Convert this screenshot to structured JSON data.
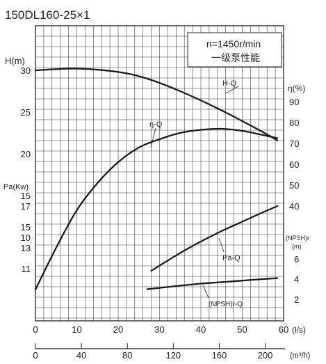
{
  "chart_data": {
    "type": "line",
    "title": "150DL160-25×1",
    "info_box": [
      "n=1450r/min",
      "一级泵性能"
    ],
    "x": {
      "label": "(l/s)",
      "ticks": [
        0,
        10,
        20,
        30,
        40,
        50,
        60
      ],
      "range": [
        0,
        60
      ]
    },
    "x2": {
      "label": "(m³/h)",
      "ticks": [
        0,
        40,
        80,
        120,
        160,
        200
      ]
    },
    "y_axes": {
      "H": {
        "label": "H(m)",
        "ticks": [
          30,
          25,
          20,
          15,
          10
        ]
      },
      "Pa": {
        "label": "Pa(Kw)",
        "ticks": [
          17,
          15,
          13,
          11
        ]
      },
      "eta": {
        "label": "η(%)",
        "ticks": [
          90,
          80,
          70,
          60,
          50,
          40
        ]
      },
      "npsh": {
        "label": "(NPSH)r",
        "unit": "(m)",
        "ticks": [
          6,
          4,
          2
        ]
      }
    },
    "series": [
      {
        "name": "H-Q",
        "axis": "H",
        "x": [
          0,
          10,
          20,
          27,
          35,
          45,
          55,
          58.5
        ],
        "y": [
          30.0,
          30.2,
          29.8,
          29.0,
          27.5,
          25.2,
          22.6,
          21.6
        ]
      },
      {
        "name": "η-Q",
        "axis": "eta",
        "x": [
          0,
          5,
          10,
          15,
          20,
          25,
          30,
          35,
          40,
          45,
          50,
          55,
          58.5
        ],
        "y": [
          0,
          20,
          38,
          51,
          61,
          68,
          72,
          75,
          76.5,
          77,
          76,
          74,
          72.5
        ]
      },
      {
        "name": "Pa-Q",
        "axis": "Pa",
        "x": [
          28,
          35,
          40,
          45,
          50,
          55,
          58.5
        ],
        "y": [
          10.8,
          12.5,
          13.6,
          14.6,
          15.5,
          16.4,
          17.0
        ]
      },
      {
        "name": "(NPSH)r-Q",
        "axis": "npsh",
        "x": [
          27,
          35,
          40,
          45,
          50,
          55,
          58.5
        ],
        "y": [
          3.0,
          3.35,
          3.55,
          3.7,
          3.85,
          4.0,
          4.1
        ]
      }
    ],
    "series_labels": [
      "H-Q",
      "η-Q",
      "Pa-Q",
      "(NPSH)r-Q"
    ],
    "grid": true
  }
}
